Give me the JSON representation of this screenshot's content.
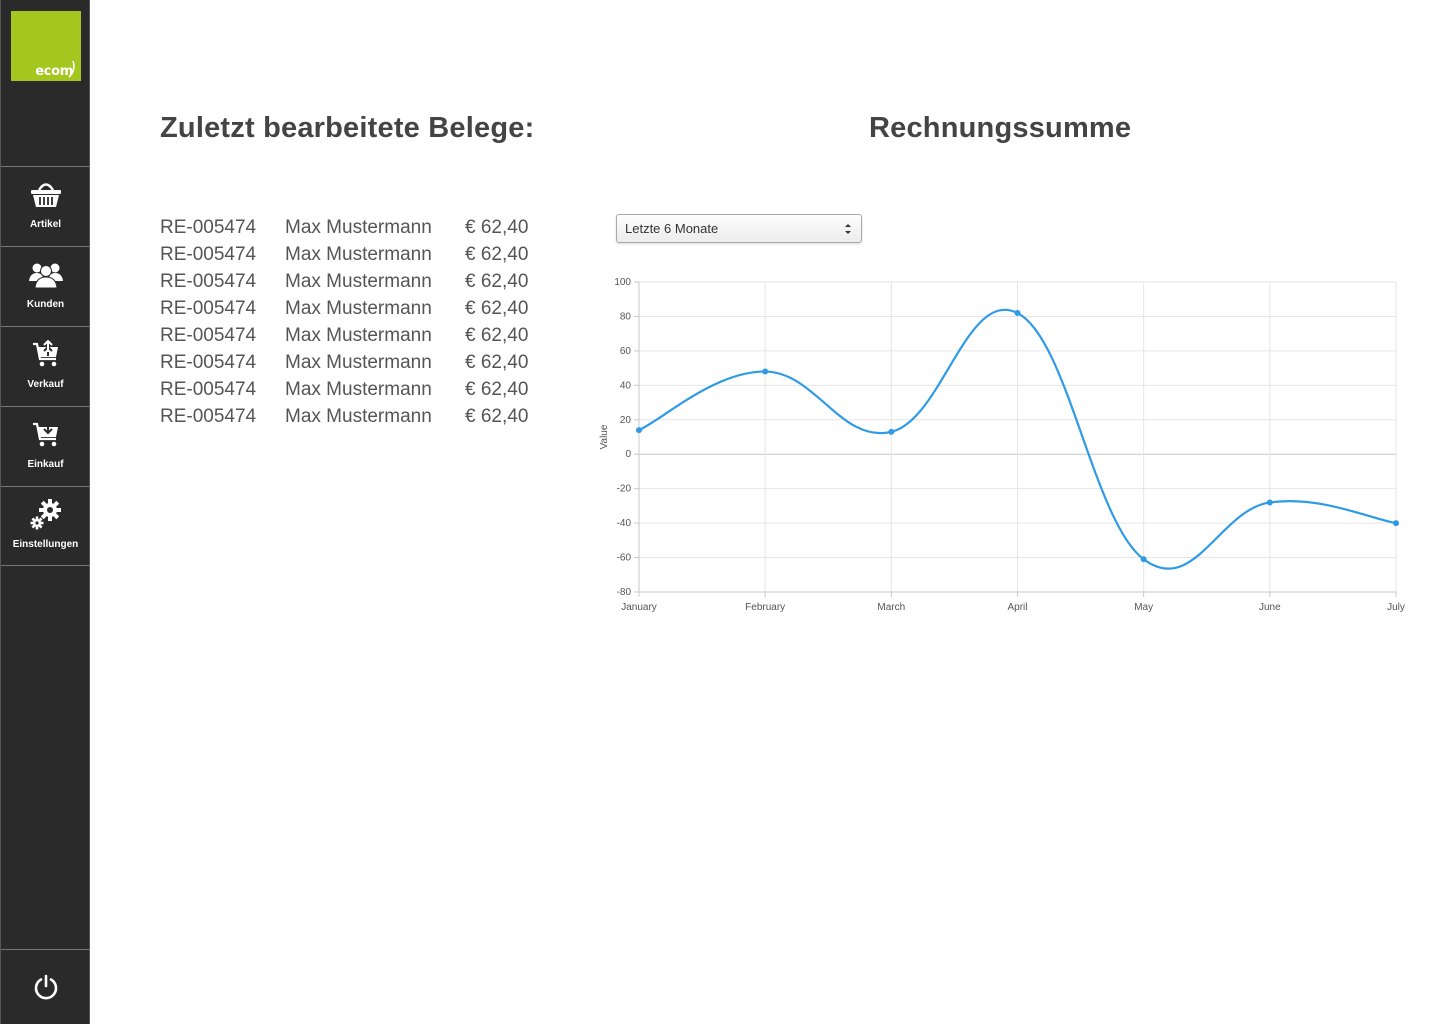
{
  "app": {
    "logo_text": "ecom"
  },
  "sidebar": {
    "items": [
      {
        "label": "Artikel",
        "icon": "basket-icon"
      },
      {
        "label": "Kunden",
        "icon": "users-icon"
      },
      {
        "label": "Verkauf",
        "icon": "cart-upload-icon"
      },
      {
        "label": "Einkauf",
        "icon": "cart-download-icon"
      },
      {
        "label": "Einstellungen",
        "icon": "gears-icon"
      }
    ],
    "power_icon": "power-icon"
  },
  "receipts": {
    "title": "Zuletzt bearbeitete Belege:",
    "rows": [
      {
        "id": "RE-005474",
        "name": "Max Mustermann",
        "amount": "€ 62,40"
      },
      {
        "id": "RE-005474",
        "name": "Max Mustermann",
        "amount": "€ 62,40"
      },
      {
        "id": "RE-005474",
        "name": "Max Mustermann",
        "amount": "€ 62,40"
      },
      {
        "id": "RE-005474",
        "name": "Max Mustermann",
        "amount": "€ 62,40"
      },
      {
        "id": "RE-005474",
        "name": "Max Mustermann",
        "amount": "€ 62,40"
      },
      {
        "id": "RE-005474",
        "name": "Max Mustermann",
        "amount": "€ 62,40"
      },
      {
        "id": "RE-005474",
        "name": "Max Mustermann",
        "amount": "€ 62,40"
      },
      {
        "id": "RE-005474",
        "name": "Max Mustermann",
        "amount": "€ 62,40"
      }
    ]
  },
  "invoice_sum": {
    "title": "Rechnungssumme",
    "period_select": {
      "value": "Letzte 6 Monate"
    }
  },
  "colors": {
    "sidebar_bg": "#2a2a2a",
    "logo_green": "#a4c71f",
    "line": "#2f9be6"
  },
  "chart_data": {
    "type": "line",
    "categories": [
      "January",
      "February",
      "March",
      "April",
      "May",
      "June",
      "July"
    ],
    "series": [
      {
        "values": [
          14,
          48,
          13,
          82,
          -61,
          -28,
          -40
        ]
      }
    ],
    "xlabel": "",
    "ylabel": "Value",
    "ylim": [
      -80,
      100
    ],
    "yticks": [
      100,
      80,
      60,
      40,
      20,
      0,
      -20,
      -40,
      -60,
      -80
    ],
    "grid": true,
    "smooth": true
  }
}
